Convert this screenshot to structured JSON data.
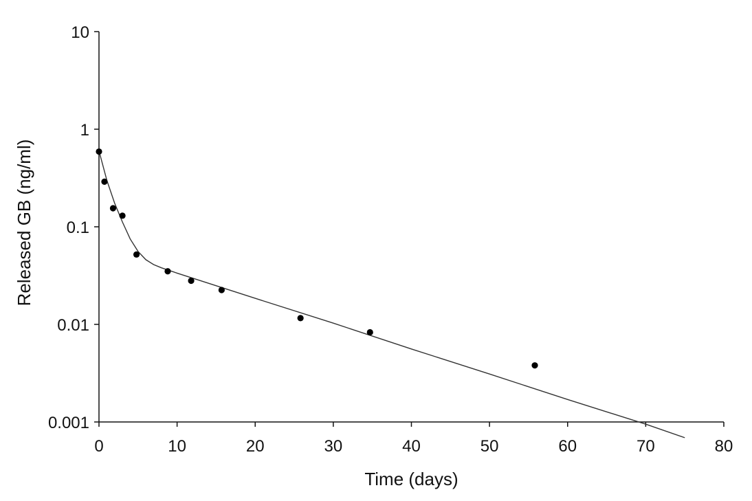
{
  "chart_data": {
    "type": "scatter",
    "xlabel": "Time (days)",
    "ylabel": "Released GB (ng/ml)",
    "xlim": [
      0,
      80
    ],
    "ylim": [
      0.001,
      10
    ],
    "y_scale": "log",
    "grid": false,
    "x_ticks": [
      "0",
      "10",
      "20",
      "30",
      "40",
      "50",
      "60",
      "70",
      "80"
    ],
    "y_ticks": [
      "0.001",
      "0.01",
      "0.1",
      "1",
      "10"
    ],
    "points": [
      {
        "x": 0,
        "y": 0.59
      },
      {
        "x": 0.7,
        "y": 0.29
      },
      {
        "x": 1.8,
        "y": 0.155
      },
      {
        "x": 3.0,
        "y": 0.13
      },
      {
        "x": 4.8,
        "y": 0.052
      },
      {
        "x": 8.8,
        "y": 0.035
      },
      {
        "x": 11.8,
        "y": 0.028
      },
      {
        "x": 15.7,
        "y": 0.0225
      },
      {
        "x": 25.8,
        "y": 0.0116
      },
      {
        "x": 34.7,
        "y": 0.0083
      },
      {
        "x": 55.8,
        "y": 0.0038
      }
    ],
    "fit_curve": [
      {
        "x": 0,
        "y": 0.6
      },
      {
        "x": 1,
        "y": 0.3
      },
      {
        "x": 2,
        "y": 0.175
      },
      {
        "x": 3,
        "y": 0.112
      },
      {
        "x": 4,
        "y": 0.075
      },
      {
        "x": 5,
        "y": 0.056
      },
      {
        "x": 6,
        "y": 0.046
      },
      {
        "x": 7,
        "y": 0.041
      },
      {
        "x": 8,
        "y": 0.038
      },
      {
        "x": 10,
        "y": 0.0335
      },
      {
        "x": 20,
        "y": 0.0185
      },
      {
        "x": 30,
        "y": 0.0103
      },
      {
        "x": 40,
        "y": 0.0056
      },
      {
        "x": 50,
        "y": 0.0031
      },
      {
        "x": 60,
        "y": 0.0017
      },
      {
        "x": 70,
        "y": 0.00095
      },
      {
        "x": 75,
        "y": 0.00069
      }
    ]
  }
}
